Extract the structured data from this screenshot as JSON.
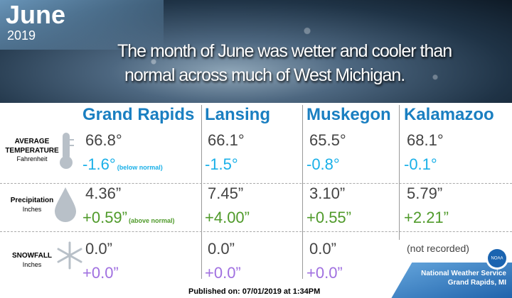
{
  "header": {
    "month": "June",
    "year": "2019",
    "headline": [
      "The month of June was wetter and cooler than",
      "normal across much of West Michigan."
    ]
  },
  "columns": [
    "Grand Rapids",
    "Lansing",
    "Muskegon",
    "Kalamazoo"
  ],
  "rows": [
    {
      "label": [
        "AVERAGE",
        "TEMPERATURE"
      ],
      "unit": "Fahrenheit",
      "values": [
        "66.8°",
        "66.1°",
        "65.5°",
        "68.1°"
      ],
      "departures": [
        "-1.6°",
        "-1.5°",
        "-0.8°",
        "-0.1°"
      ],
      "note": "(below normal)"
    },
    {
      "label": [
        "Precipitation"
      ],
      "unit": "Inches",
      "values": [
        "4.36”",
        "7.45”",
        "3.10”",
        "5.79”"
      ],
      "departures": [
        "+0.59”",
        "+4.00”",
        "+0.55”",
        "+2.21”"
      ],
      "note": "(above normal)"
    },
    {
      "label": [
        "SNOWFALL"
      ],
      "unit": "Inches",
      "values": [
        "0.0”",
        "0.0”",
        "0.0”",
        "(not recorded)"
      ],
      "departures": [
        "+0.0”",
        "+0.0”",
        "+0.0”",
        null
      ]
    }
  ],
  "footer": {
    "published": "Published on: 07/01/2019 at 1:34PM",
    "agency": "National Weather Service",
    "office": "Grand Rapids, MI",
    "logo": "NOAA"
  }
}
